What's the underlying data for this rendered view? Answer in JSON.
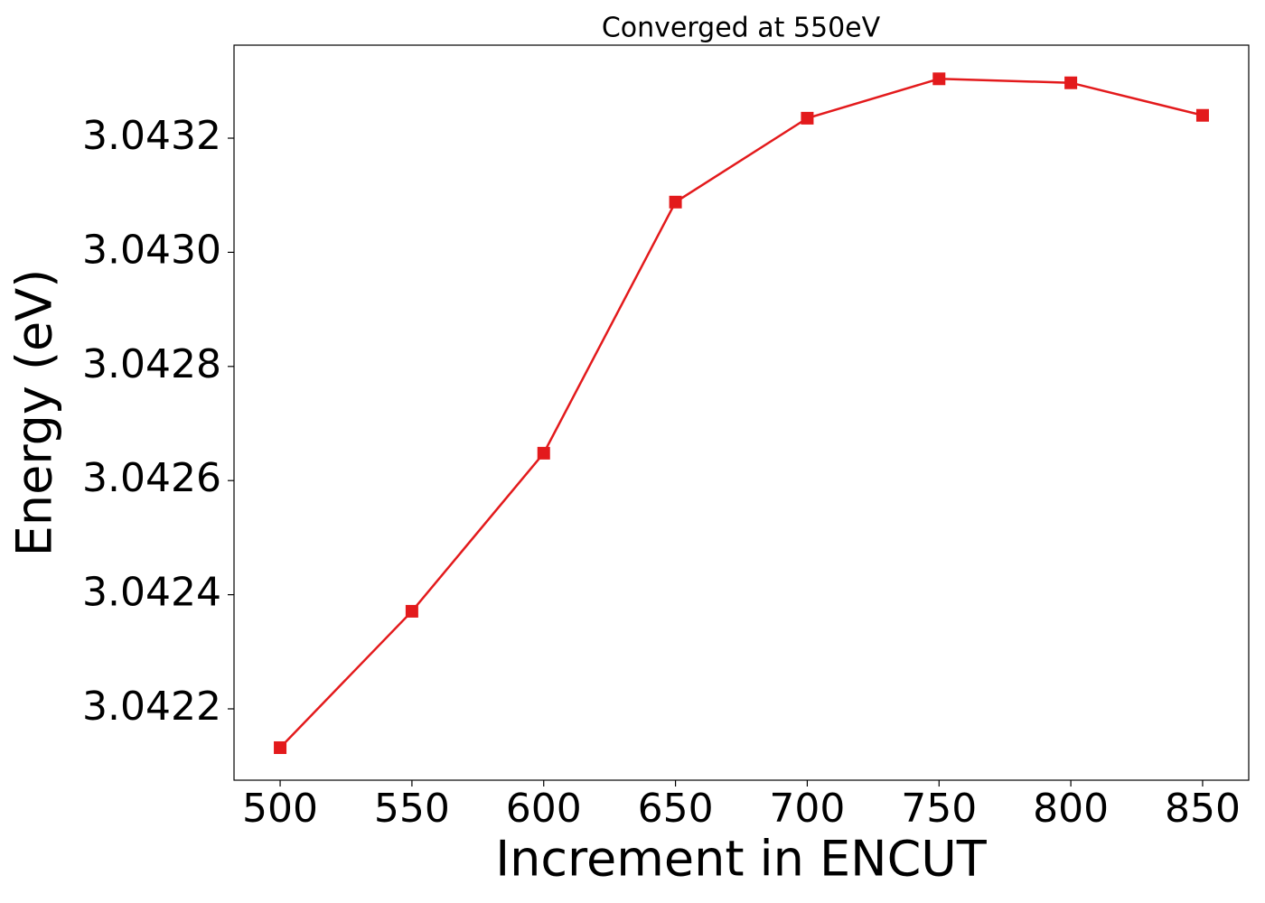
{
  "chart_data": {
    "type": "line",
    "title": "Converged at 550eV",
    "x_label": "Increment in ENCUT",
    "y_label": "Energy (eV)",
    "x": [
      500,
      550,
      600,
      650,
      700,
      750,
      800,
      850
    ],
    "series": [
      {
        "name": "Energy",
        "color": "#e31a1c",
        "values": [
          3.042132,
          3.042371,
          3.042648,
          3.043088,
          3.043235,
          3.043304,
          3.043297,
          3.04324
        ]
      }
    ],
    "xlim": [
      482.5,
      867.5
    ],
    "xticks": [
      500,
      550,
      600,
      650,
      700,
      750,
      800,
      850
    ],
    "ylim": [
      3.042075,
      3.043363
    ],
    "yticks": [
      3.0422,
      3.0424,
      3.0426,
      3.0428,
      {
        "value": 3.043,
        "label": "3.0430"
      },
      3.0432
    ],
    "grid": false,
    "marker": "square"
  }
}
